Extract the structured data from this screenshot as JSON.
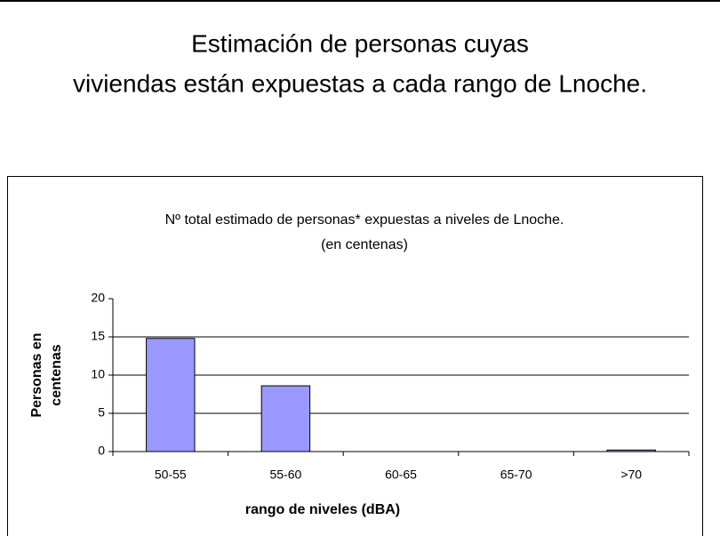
{
  "slide_title": [
    "Estimación de personas cuyas",
    "viviendas están expuestas a cada rango de Lnoche."
  ],
  "chart_data": {
    "type": "bar",
    "title": [
      "Nº total estimado de personas* expuestas a niveles de Lnoche.",
      "(en centenas)"
    ],
    "categories": [
      "50-55",
      "55-60",
      "60-65",
      "65-70",
      ">70"
    ],
    "values": [
      14.8,
      8.6,
      0,
      0,
      0.2
    ],
    "color": "#9999ff",
    "ylim": [
      0,
      20
    ],
    "yticks": [
      0,
      5,
      10,
      15,
      20
    ],
    "grid": true,
    "x_label": "rango de niveles (dBA)",
    "y_label": [
      "Personas en",
      "centenas"
    ]
  }
}
